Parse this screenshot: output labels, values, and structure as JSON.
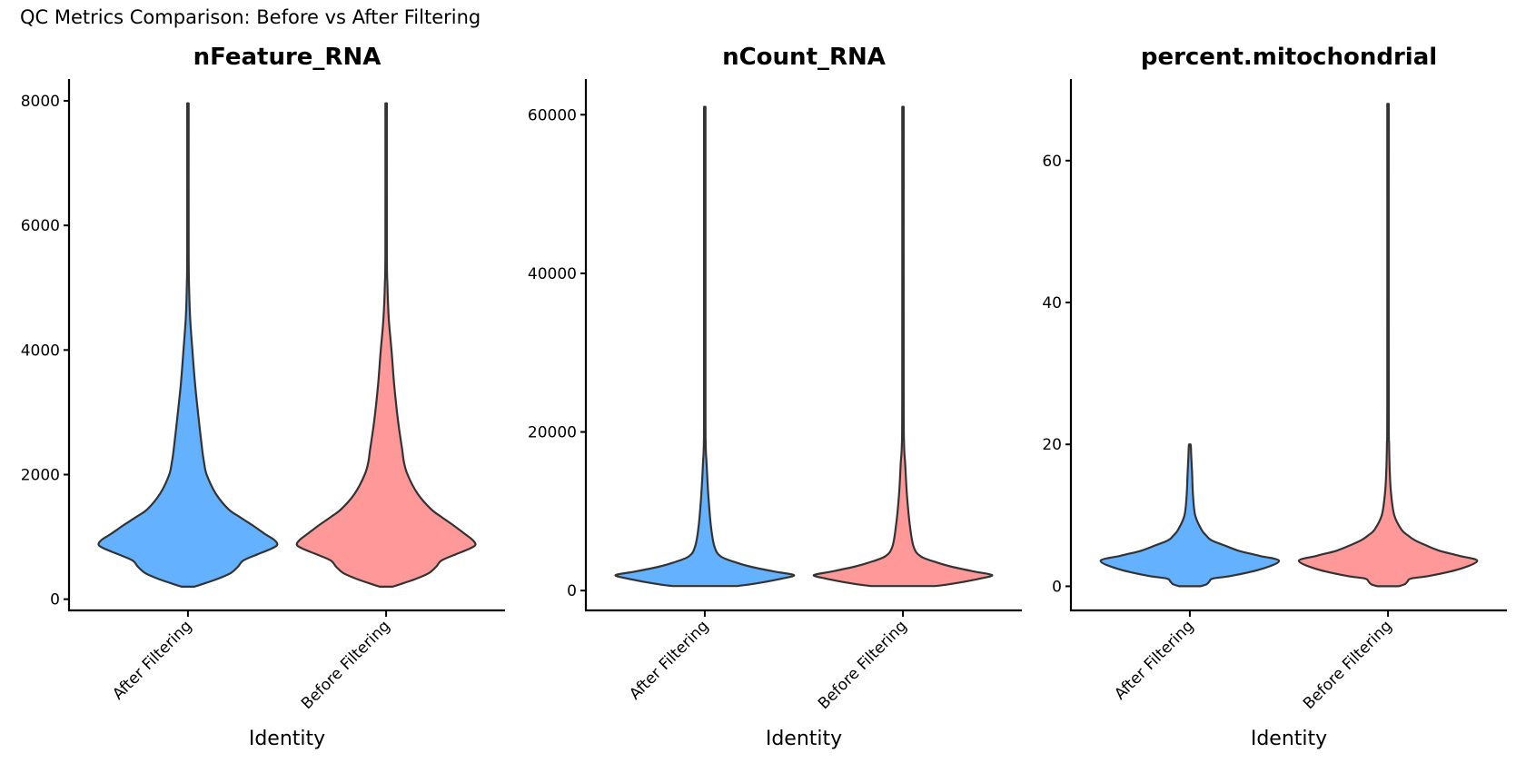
{
  "title": "QC Metrics Comparison: Before vs After Filtering",
  "colors": {
    "After Filtering": "#63B1FF",
    "Before Filtering": "#FF9999",
    "outline": "#333333"
  },
  "chart_data": [
    {
      "type": "violin",
      "title": "nFeature_RNA",
      "xlabel": "Identity",
      "ylabel": "",
      "categories": [
        "After Filtering",
        "Before Filtering"
      ],
      "yticks": [
        0,
        2000,
        4000,
        6000,
        8000
      ],
      "ytick_labels": [
        "0",
        "2000",
        "4000",
        "6000",
        "8000"
      ],
      "ylim": [
        -180,
        8350
      ],
      "series": [
        {
          "name": "After Filtering",
          "min": 200,
          "max": 7960,
          "mode": 870,
          "profile": [
            [
              200,
              0.07
            ],
            [
              260,
              0.2
            ],
            [
              330,
              0.34
            ],
            [
              420,
              0.48
            ],
            [
              520,
              0.56
            ],
            [
              620,
              0.62
            ],
            [
              720,
              0.78
            ],
            [
              800,
              0.92
            ],
            [
              870,
              1.0
            ],
            [
              950,
              0.97
            ],
            [
              1050,
              0.86
            ],
            [
              1190,
              0.72
            ],
            [
              1320,
              0.58
            ],
            [
              1450,
              0.45
            ],
            [
              1700,
              0.31
            ],
            [
              2000,
              0.21
            ],
            [
              2200,
              0.18
            ],
            [
              2400,
              0.16
            ],
            [
              2900,
              0.12
            ],
            [
              3450,
              0.08
            ],
            [
              4000,
              0.05
            ],
            [
              4500,
              0.025
            ],
            [
              5050,
              0.012
            ],
            [
              5600,
              0.007
            ],
            [
              7960,
              0.005
            ]
          ]
        },
        {
          "name": "Before Filtering",
          "min": 200,
          "max": 7960,
          "mode": 870,
          "profile": [
            [
              200,
              0.07
            ],
            [
              260,
              0.2
            ],
            [
              330,
              0.34
            ],
            [
              420,
              0.48
            ],
            [
              520,
              0.56
            ],
            [
              620,
              0.62
            ],
            [
              720,
              0.78
            ],
            [
              800,
              0.92
            ],
            [
              870,
              1.0
            ],
            [
              950,
              0.97
            ],
            [
              1050,
              0.88
            ],
            [
              1190,
              0.75
            ],
            [
              1320,
              0.62
            ],
            [
              1450,
              0.5
            ],
            [
              1700,
              0.35
            ],
            [
              2000,
              0.24
            ],
            [
              2200,
              0.2
            ],
            [
              2400,
              0.18
            ],
            [
              2900,
              0.13
            ],
            [
              3450,
              0.09
            ],
            [
              4000,
              0.06
            ],
            [
              4500,
              0.03
            ],
            [
              5050,
              0.014
            ],
            [
              5600,
              0.008
            ],
            [
              7960,
              0.005
            ]
          ]
        }
      ]
    },
    {
      "type": "violin",
      "title": "nCount_RNA",
      "xlabel": "Identity",
      "ylabel": "",
      "categories": [
        "After Filtering",
        "Before Filtering"
      ],
      "yticks": [
        0,
        20000,
        40000,
        60000
      ],
      "ytick_labels": [
        "0",
        "20000",
        "40000",
        "60000"
      ],
      "ylim": [
        -2500,
        64500
      ],
      "series": [
        {
          "name": "After Filtering",
          "min": 570,
          "max": 61000,
          "mode": 1940,
          "profile": [
            [
              570,
              0.36
            ],
            [
              800,
              0.52
            ],
            [
              1100,
              0.68
            ],
            [
              1500,
              0.86
            ],
            [
              1940,
              1.0
            ],
            [
              2400,
              0.78
            ],
            [
              3000,
              0.52
            ],
            [
              3500,
              0.36
            ],
            [
              4300,
              0.18
            ],
            [
              5500,
              0.11
            ],
            [
              8000,
              0.07
            ],
            [
              12000,
              0.04
            ],
            [
              16000,
              0.02
            ],
            [
              18500,
              0.01
            ],
            [
              25000,
              0.006
            ],
            [
              61000,
              0.005
            ]
          ]
        },
        {
          "name": "Before Filtering",
          "min": 570,
          "max": 61000,
          "mode": 1940,
          "profile": [
            [
              570,
              0.36
            ],
            [
              800,
              0.52
            ],
            [
              1100,
              0.68
            ],
            [
              1500,
              0.86
            ],
            [
              1940,
              1.0
            ],
            [
              2400,
              0.8
            ],
            [
              3000,
              0.55
            ],
            [
              3500,
              0.39
            ],
            [
              4300,
              0.2
            ],
            [
              5500,
              0.12
            ],
            [
              8000,
              0.08
            ],
            [
              12000,
              0.045
            ],
            [
              16000,
              0.025
            ],
            [
              18500,
              0.012
            ],
            [
              25000,
              0.006
            ],
            [
              61000,
              0.005
            ]
          ]
        }
      ]
    },
    {
      "type": "violin",
      "title": "percent.mitochondrial",
      "xlabel": "Identity",
      "ylabel": "",
      "categories": [
        "After Filtering",
        "Before Filtering"
      ],
      "yticks": [
        0,
        20,
        40,
        60
      ],
      "ytick_labels": [
        "0",
        "20",
        "40",
        "60"
      ],
      "ylim": [
        -3.4,
        71.5
      ],
      "series": [
        {
          "name": "After Filtering",
          "min": 0,
          "max": 20,
          "mode": 3.6,
          "profile": [
            [
              0,
              0.12
            ],
            [
              0.3,
              0.19
            ],
            [
              0.7,
              0.22
            ],
            [
              1.1,
              0.26
            ],
            [
              1.5,
              0.48
            ],
            [
              2.5,
              0.82
            ],
            [
              3.6,
              1.0
            ],
            [
              4.3,
              0.78
            ],
            [
              5.0,
              0.55
            ],
            [
              5.8,
              0.38
            ],
            [
              6.5,
              0.24
            ],
            [
              7.2,
              0.18
            ],
            [
              8.0,
              0.13
            ],
            [
              10,
              0.06
            ],
            [
              13,
              0.035
            ],
            [
              16,
              0.025
            ],
            [
              18.5,
              0.015
            ],
            [
              19.6,
              0.012
            ],
            [
              20,
              0.0
            ]
          ]
        },
        {
          "name": "Before Filtering",
          "min": 0,
          "max": 68,
          "mode": 3.6,
          "profile": [
            [
              0,
              0.12
            ],
            [
              0.3,
              0.19
            ],
            [
              0.7,
              0.22
            ],
            [
              1.1,
              0.26
            ],
            [
              1.5,
              0.48
            ],
            [
              2.5,
              0.82
            ],
            [
              3.6,
              1.0
            ],
            [
              4.3,
              0.8
            ],
            [
              5.0,
              0.58
            ],
            [
              5.8,
              0.42
            ],
            [
              6.5,
              0.3
            ],
            [
              7.2,
              0.22
            ],
            [
              8.0,
              0.15
            ],
            [
              10,
              0.07
            ],
            [
              13,
              0.035
            ],
            [
              16,
              0.02
            ],
            [
              20,
              0.012
            ],
            [
              26,
              0.007
            ],
            [
              68,
              0.005
            ]
          ]
        }
      ]
    }
  ]
}
